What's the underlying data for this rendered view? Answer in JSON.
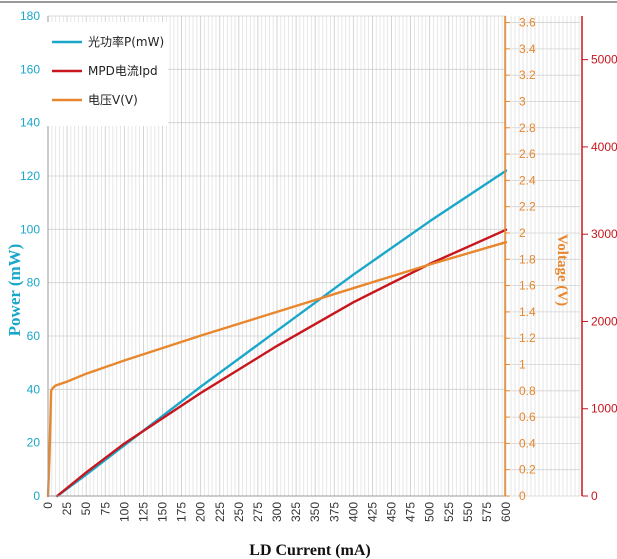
{
  "chart_data": {
    "type": "line",
    "xlabel": "LD Current (mA)",
    "x_ticks": [
      "0",
      "25",
      "50",
      "75",
      "100",
      "125",
      "150",
      "175",
      "200",
      "225",
      "250",
      "275",
      "300",
      "325",
      "350",
      "375",
      "400",
      "425",
      "450",
      "475",
      "500",
      "525",
      "550",
      "575",
      "600"
    ],
    "xlim": [
      0,
      600
    ],
    "left_axis": {
      "label": "Power (mW)",
      "ylim": [
        0,
        180
      ],
      "ticks": [
        "0",
        "20",
        "40",
        "60",
        "80",
        "100",
        "120",
        "140",
        "160",
        "180"
      ],
      "color": "#1aa7c9"
    },
    "voltage_axis": {
      "label": "Voltage (V)",
      "ylim": [
        0,
        3.65
      ],
      "ticks": [
        "0",
        "0.2",
        "0.4",
        "0.6",
        "0.8",
        "1",
        "1.2",
        "1.4",
        "1.6",
        "1.8",
        "2",
        "2.2",
        "2.4",
        "2.6",
        "2.8",
        "3",
        "3.2",
        "3.4",
        "3.6"
      ],
      "color": "#e8872d"
    },
    "right_axis": {
      "label": "",
      "ylim": [
        0,
        5500
      ],
      "ticks": [
        "0",
        "1000",
        "2000",
        "3000",
        "4000",
        "5000"
      ],
      "color": "#c8161d"
    },
    "legend_position": "top-left",
    "grid": true,
    "series": [
      {
        "name": "光功率P(mW)",
        "axis": "left",
        "color": "#1aa7c9",
        "x": [
          12,
          50,
          100,
          200,
          300,
          400,
          500,
          600
        ],
        "y": [
          0,
          8,
          19,
          41,
          62,
          83,
          103,
          122
        ]
      },
      {
        "name": "MPD电流Ipd",
        "axis": "right",
        "color": "#c8161d",
        "x": [
          12,
          50,
          100,
          200,
          300,
          400,
          500,
          600
        ],
        "y": [
          0,
          270,
          600,
          1180,
          1720,
          2220,
          2660,
          3050
        ]
      },
      {
        "name": "电压V(V)",
        "axis": "voltage",
        "color": "#e8872d",
        "x": [
          0,
          2,
          4,
          6,
          10,
          25,
          50,
          100,
          200,
          300,
          400,
          500,
          600
        ],
        "y": [
          0,
          0.3,
          0.8,
          0.82,
          0.84,
          0.87,
          0.93,
          1.03,
          1.22,
          1.4,
          1.58,
          1.76,
          1.93
        ]
      }
    ]
  }
}
